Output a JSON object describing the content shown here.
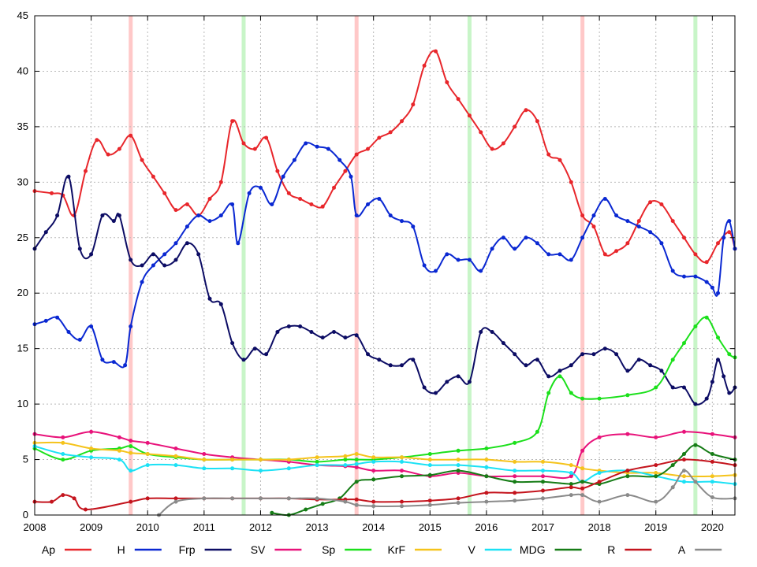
{
  "chart_data": {
    "type": "line",
    "title": "",
    "xlabel": "",
    "ylabel": "",
    "xlim": [
      2008.0,
      2020.4
    ],
    "ylim": [
      0,
      45
    ],
    "x_ticks": [
      2008,
      2009,
      2010,
      2011,
      2012,
      2013,
      2014,
      2015,
      2016,
      2017,
      2018,
      2019,
      2020
    ],
    "y_ticks": [
      0,
      5,
      10,
      15,
      20,
      25,
      30,
      35,
      40,
      45
    ],
    "grid": "dotted",
    "legend_placement": "bottom",
    "election_markers": [
      {
        "x": 2009.7,
        "kind": "general election",
        "color": "#ffc8c8"
      },
      {
        "x": 2011.7,
        "kind": "local election",
        "color": "#c8f5c8"
      },
      {
        "x": 2013.7,
        "kind": "general election",
        "color": "#ffc8c8"
      },
      {
        "x": 2015.7,
        "kind": "local election",
        "color": "#c8f5c8"
      },
      {
        "x": 2017.7,
        "kind": "general election",
        "color": "#ffc8c8"
      },
      {
        "x": 2019.7,
        "kind": "local election",
        "color": "#c8f5c8"
      }
    ],
    "series": [
      {
        "name": "Ap",
        "color": "#e8262b",
        "x": [
          2008.0,
          2008.3,
          2008.5,
          2008.7,
          2008.9,
          2009.1,
          2009.3,
          2009.5,
          2009.7,
          2009.9,
          2010.1,
          2010.3,
          2010.5,
          2010.7,
          2010.9,
          2011.1,
          2011.3,
          2011.5,
          2011.7,
          2011.9,
          2012.1,
          2012.3,
          2012.5,
          2012.7,
          2012.9,
          2013.1,
          2013.3,
          2013.5,
          2013.7,
          2013.9,
          2014.1,
          2014.3,
          2014.5,
          2014.7,
          2014.9,
          2015.1,
          2015.3,
          2015.5,
          2015.7,
          2015.9,
          2016.1,
          2016.3,
          2016.5,
          2016.7,
          2016.9,
          2017.1,
          2017.3,
          2017.5,
          2017.7,
          2017.9,
          2018.1,
          2018.3,
          2018.5,
          2018.7,
          2018.9,
          2019.1,
          2019.3,
          2019.5,
          2019.7,
          2019.9,
          2020.1,
          2020.3,
          2020.4
        ],
        "values": [
          29.2,
          29.0,
          28.8,
          27.0,
          31.0,
          33.8,
          32.5,
          33.0,
          34.2,
          32.0,
          30.5,
          29.0,
          27.5,
          28.0,
          27.0,
          28.5,
          30.0,
          35.5,
          33.5,
          33.0,
          34.0,
          31.0,
          29.0,
          28.5,
          28.0,
          27.8,
          29.5,
          31.0,
          32.5,
          33.0,
          34.0,
          34.5,
          35.5,
          37.0,
          40.5,
          41.8,
          39.0,
          37.5,
          36.0,
          34.5,
          33.0,
          33.5,
          35.0,
          36.5,
          35.5,
          32.5,
          32.0,
          30.0,
          27.0,
          26.0,
          23.5,
          23.8,
          24.5,
          26.5,
          28.2,
          28.0,
          26.5,
          25.0,
          23.5,
          22.8,
          24.5,
          25.5,
          24.0
        ]
      },
      {
        "name": "H",
        "color": "#0a28d2",
        "x": [
          2008.0,
          2008.2,
          2008.4,
          2008.6,
          2008.8,
          2009.0,
          2009.2,
          2009.4,
          2009.6,
          2009.7,
          2009.9,
          2010.1,
          2010.3,
          2010.5,
          2010.7,
          2010.9,
          2011.1,
          2011.3,
          2011.5,
          2011.6,
          2011.8,
          2012.0,
          2012.2,
          2012.4,
          2012.6,
          2012.8,
          2013.0,
          2013.2,
          2013.4,
          2013.6,
          2013.7,
          2013.9,
          2014.1,
          2014.3,
          2014.5,
          2014.7,
          2014.9,
          2015.1,
          2015.3,
          2015.5,
          2015.7,
          2015.9,
          2016.1,
          2016.3,
          2016.5,
          2016.7,
          2016.9,
          2017.1,
          2017.3,
          2017.5,
          2017.7,
          2017.9,
          2018.1,
          2018.3,
          2018.5,
          2018.7,
          2018.9,
          2019.1,
          2019.3,
          2019.5,
          2019.7,
          2019.9,
          2020.0,
          2020.1,
          2020.2,
          2020.3,
          2020.4
        ],
        "values": [
          17.2,
          17.5,
          17.8,
          16.5,
          15.8,
          17.0,
          14.0,
          13.8,
          13.5,
          17.0,
          21.0,
          22.5,
          23.5,
          24.5,
          26.0,
          27.0,
          26.5,
          27.0,
          28.0,
          24.5,
          29.0,
          29.5,
          28.0,
          30.5,
          32.0,
          33.5,
          33.2,
          33.0,
          32.0,
          30.5,
          27.0,
          28.0,
          28.5,
          27.0,
          26.5,
          26.0,
          22.5,
          22.0,
          23.5,
          23.0,
          23.0,
          22.0,
          24.0,
          25.0,
          24.0,
          25.0,
          24.5,
          23.5,
          23.5,
          23.0,
          25.0,
          27.0,
          28.5,
          27.0,
          26.5,
          26.0,
          25.5,
          24.5,
          22.0,
          21.5,
          21.5,
          21.0,
          20.5,
          20.0,
          25.0,
          26.5,
          24.0
        ]
      },
      {
        "name": "Frp",
        "color": "#0c0c64",
        "x": [
          2008.0,
          2008.2,
          2008.4,
          2008.6,
          2008.8,
          2009.0,
          2009.2,
          2009.4,
          2009.5,
          2009.7,
          2009.9,
          2010.1,
          2010.3,
          2010.5,
          2010.7,
          2010.9,
          2011.1,
          2011.3,
          2011.5,
          2011.7,
          2011.9,
          2012.1,
          2012.3,
          2012.5,
          2012.7,
          2012.9,
          2013.1,
          2013.3,
          2013.5,
          2013.7,
          2013.9,
          2014.1,
          2014.3,
          2014.5,
          2014.7,
          2014.9,
          2015.1,
          2015.3,
          2015.5,
          2015.7,
          2015.9,
          2016.1,
          2016.3,
          2016.5,
          2016.7,
          2016.9,
          2017.1,
          2017.3,
          2017.5,
          2017.7,
          2017.9,
          2018.1,
          2018.3,
          2018.5,
          2018.7,
          2018.9,
          2019.1,
          2019.3,
          2019.5,
          2019.7,
          2019.9,
          2020.0,
          2020.1,
          2020.2,
          2020.3,
          2020.4
        ],
        "values": [
          24.0,
          25.5,
          27.0,
          30.5,
          24.0,
          23.5,
          27.0,
          26.5,
          27.0,
          23.0,
          22.5,
          23.5,
          22.5,
          23.0,
          24.5,
          23.5,
          19.5,
          19.0,
          15.5,
          14.0,
          15.0,
          14.5,
          16.5,
          17.0,
          17.0,
          16.5,
          16.0,
          16.5,
          16.0,
          16.2,
          14.5,
          14.0,
          13.5,
          13.5,
          14.0,
          11.5,
          11.0,
          12.0,
          12.5,
          12.0,
          16.5,
          16.5,
          15.5,
          14.5,
          13.5,
          14.0,
          12.5,
          13.0,
          13.5,
          14.5,
          14.5,
          15.0,
          14.5,
          13.0,
          14.0,
          13.5,
          13.0,
          11.5,
          11.5,
          10.0,
          10.5,
          12.0,
          14.0,
          12.5,
          11.0,
          11.5
        ]
      },
      {
        "name": "SV",
        "color": "#e8127a",
        "x": [
          2008.0,
          2008.5,
          2009.0,
          2009.5,
          2009.7,
          2010.0,
          2010.5,
          2011.0,
          2011.5,
          2012.0,
          2012.5,
          2013.0,
          2013.5,
          2013.7,
          2014.0,
          2014.5,
          2015.0,
          2015.5,
          2016.0,
          2016.5,
          2017.0,
          2017.5,
          2017.7,
          2018.0,
          2018.5,
          2019.0,
          2019.5,
          2020.0,
          2020.4
        ],
        "values": [
          7.3,
          7.0,
          7.5,
          7.0,
          6.7,
          6.5,
          6.0,
          5.5,
          5.2,
          5.0,
          4.8,
          4.5,
          4.4,
          4.3,
          4.0,
          4.0,
          3.5,
          3.8,
          3.5,
          3.5,
          3.5,
          3.5,
          5.8,
          7.0,
          7.3,
          7.0,
          7.5,
          7.3,
          7.0
        ]
      },
      {
        "name": "Sp",
        "color": "#1be01b",
        "x": [
          2008.0,
          2008.5,
          2009.0,
          2009.5,
          2009.7,
          2010.0,
          2010.5,
          2011.0,
          2011.5,
          2012.0,
          2012.5,
          2013.0,
          2013.5,
          2013.7,
          2014.0,
          2014.5,
          2015.0,
          2015.5,
          2016.0,
          2016.5,
          2016.9,
          2017.1,
          2017.3,
          2017.5,
          2017.7,
          2018.0,
          2018.5,
          2019.0,
          2019.3,
          2019.5,
          2019.7,
          2019.9,
          2020.1,
          2020.3,
          2020.4
        ],
        "values": [
          6.0,
          5.0,
          5.8,
          6.0,
          6.2,
          5.5,
          5.2,
          5.0,
          5.0,
          5.0,
          5.0,
          4.8,
          5.0,
          5.0,
          5.0,
          5.2,
          5.5,
          5.8,
          6.0,
          6.5,
          7.5,
          11.0,
          12.5,
          11.0,
          10.5,
          10.5,
          10.8,
          11.5,
          14.0,
          15.5,
          17.0,
          17.8,
          16.0,
          14.5,
          14.2
        ]
      },
      {
        "name": "KrF",
        "color": "#f5c31b",
        "x": [
          2008.0,
          2008.5,
          2009.0,
          2009.5,
          2009.7,
          2010.0,
          2010.5,
          2011.0,
          2011.5,
          2012.0,
          2012.5,
          2013.0,
          2013.5,
          2013.7,
          2014.0,
          2014.5,
          2015.0,
          2015.5,
          2016.0,
          2016.5,
          2017.0,
          2017.5,
          2017.7,
          2018.0,
          2018.5,
          2019.0,
          2019.5,
          2020.0,
          2020.4
        ],
        "values": [
          6.5,
          6.5,
          6.0,
          5.8,
          5.6,
          5.5,
          5.3,
          5.0,
          5.0,
          5.0,
          5.0,
          5.2,
          5.3,
          5.5,
          5.2,
          5.2,
          5.0,
          5.0,
          5.0,
          4.8,
          4.8,
          4.5,
          4.2,
          4.0,
          3.8,
          3.8,
          3.5,
          3.5,
          3.6
        ]
      },
      {
        "name": "V",
        "color": "#1be1f5",
        "x": [
          2008.0,
          2008.5,
          2009.0,
          2009.5,
          2009.7,
          2010.0,
          2010.5,
          2011.0,
          2011.5,
          2012.0,
          2012.5,
          2013.0,
          2013.5,
          2013.7,
          2014.0,
          2014.5,
          2015.0,
          2015.5,
          2016.0,
          2016.5,
          2017.0,
          2017.5,
          2017.7,
          2018.0,
          2018.5,
          2019.0,
          2019.5,
          2020.0,
          2020.4
        ],
        "values": [
          6.2,
          5.5,
          5.2,
          5.0,
          4.0,
          4.5,
          4.5,
          4.2,
          4.2,
          4.0,
          4.2,
          4.5,
          4.5,
          4.6,
          4.8,
          4.8,
          4.5,
          4.5,
          4.3,
          4.0,
          4.0,
          3.8,
          3.0,
          3.8,
          4.0,
          3.5,
          3.0,
          3.0,
          2.8
        ]
      },
      {
        "name": "MDG",
        "color": "#167c16",
        "x": [
          2012.2,
          2012.5,
          2012.8,
          2013.1,
          2013.4,
          2013.7,
          2014.0,
          2014.5,
          2015.0,
          2015.5,
          2016.0,
          2016.5,
          2017.0,
          2017.5,
          2017.7,
          2018.0,
          2018.5,
          2019.0,
          2019.3,
          2019.5,
          2019.7,
          2020.0,
          2020.4
        ],
        "values": [
          0.2,
          0.0,
          0.5,
          1.0,
          1.5,
          3.0,
          3.2,
          3.5,
          3.6,
          4.0,
          3.5,
          3.0,
          3.0,
          2.8,
          3.0,
          2.8,
          3.5,
          3.5,
          4.5,
          5.5,
          6.3,
          5.5,
          5.0
        ]
      },
      {
        "name": "R",
        "color": "#c4141d",
        "x": [
          2008.0,
          2008.3,
          2008.5,
          2008.7,
          2008.9,
          2009.7,
          2010.0,
          2010.5,
          2011.0,
          2011.5,
          2012.0,
          2012.5,
          2013.0,
          2013.5,
          2013.7,
          2014.0,
          2014.5,
          2015.0,
          2015.5,
          2016.0,
          2016.5,
          2017.0,
          2017.5,
          2017.7,
          2018.0,
          2018.5,
          2019.0,
          2019.5,
          2020.0,
          2020.4
        ],
        "values": [
          1.2,
          1.2,
          1.8,
          1.5,
          0.5,
          1.2,
          1.5,
          1.5,
          1.5,
          1.5,
          1.5,
          1.5,
          1.4,
          1.4,
          1.4,
          1.2,
          1.2,
          1.3,
          1.5,
          2.0,
          2.0,
          2.2,
          2.5,
          2.4,
          3.0,
          4.0,
          4.5,
          5.0,
          4.8,
          4.5
        ]
      },
      {
        "name": "A",
        "color": "#8a8a8a",
        "x": [
          2010.2,
          2010.5,
          2011.0,
          2011.5,
          2012.0,
          2012.5,
          2013.0,
          2013.5,
          2013.7,
          2014.0,
          2014.5,
          2015.0,
          2015.5,
          2016.0,
          2016.5,
          2017.0,
          2017.5,
          2017.7,
          2018.0,
          2018.5,
          2019.0,
          2019.3,
          2019.5,
          2019.7,
          2020.0,
          2020.4
        ],
        "values": [
          0.0,
          1.2,
          1.5,
          1.5,
          1.5,
          1.5,
          1.5,
          1.2,
          0.9,
          0.8,
          0.8,
          0.9,
          1.1,
          1.2,
          1.3,
          1.5,
          1.8,
          1.8,
          1.2,
          1.8,
          1.2,
          2.5,
          4.0,
          3.0,
          1.6,
          1.5
        ]
      }
    ]
  }
}
